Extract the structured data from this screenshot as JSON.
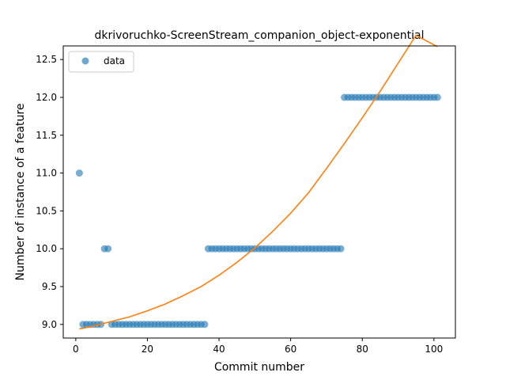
{
  "chart_data": {
    "type": "scatter",
    "title": "dkrivoruchko-ScreenStream_companion_object-exponential",
    "xlabel": "Commit number",
    "ylabel": "Number of instance of a feature",
    "xlim": [
      -3.5,
      106
    ],
    "ylim": [
      8.82,
      12.68
    ],
    "xticks": [
      0,
      20,
      40,
      60,
      80,
      100
    ],
    "yticks": [
      9.0,
      9.5,
      10.0,
      10.5,
      11.0,
      11.5,
      12.0,
      12.5
    ],
    "xtick_labels": [
      "0",
      "20",
      "40",
      "60",
      "80",
      "100"
    ],
    "ytick_labels": [
      "9.0",
      "9.5",
      "10.0",
      "10.5",
      "11.0",
      "11.5",
      "12.0",
      "12.5"
    ],
    "legend": {
      "placement": "top-left",
      "entries": [
        "data"
      ]
    },
    "grid": false,
    "colors": {
      "data": "#1f77b4",
      "fit": "#ff7f0e"
    },
    "series": [
      {
        "name": "data",
        "kind": "scatter",
        "points": [
          [
            1,
            11
          ],
          [
            2,
            9
          ],
          [
            3,
            9
          ],
          [
            4,
            9
          ],
          [
            5,
            9
          ],
          [
            6,
            9
          ],
          [
            7,
            9
          ],
          [
            8,
            10
          ],
          [
            9,
            10
          ],
          [
            10,
            9
          ],
          [
            11,
            9
          ],
          [
            12,
            9
          ],
          [
            13,
            9
          ],
          [
            14,
            9
          ],
          [
            15,
            9
          ],
          [
            16,
            9
          ],
          [
            17,
            9
          ],
          [
            18,
            9
          ],
          [
            19,
            9
          ],
          [
            20,
            9
          ],
          [
            21,
            9
          ],
          [
            22,
            9
          ],
          [
            23,
            9
          ],
          [
            24,
            9
          ],
          [
            25,
            9
          ],
          [
            26,
            9
          ],
          [
            27,
            9
          ],
          [
            28,
            9
          ],
          [
            29,
            9
          ],
          [
            30,
            9
          ],
          [
            31,
            9
          ],
          [
            32,
            9
          ],
          [
            33,
            9
          ],
          [
            34,
            9
          ],
          [
            35,
            9
          ],
          [
            36,
            9
          ],
          [
            37,
            10
          ],
          [
            38,
            10
          ],
          [
            39,
            10
          ],
          [
            40,
            10
          ],
          [
            41,
            10
          ],
          [
            42,
            10
          ],
          [
            43,
            10
          ],
          [
            44,
            10
          ],
          [
            45,
            10
          ],
          [
            46,
            10
          ],
          [
            47,
            10
          ],
          [
            48,
            10
          ],
          [
            49,
            10
          ],
          [
            50,
            10
          ],
          [
            51,
            10
          ],
          [
            52,
            10
          ],
          [
            53,
            10
          ],
          [
            54,
            10
          ],
          [
            55,
            10
          ],
          [
            56,
            10
          ],
          [
            57,
            10
          ],
          [
            58,
            10
          ],
          [
            59,
            10
          ],
          [
            60,
            10
          ],
          [
            61,
            10
          ],
          [
            62,
            10
          ],
          [
            63,
            10
          ],
          [
            64,
            10
          ],
          [
            65,
            10
          ],
          [
            66,
            10
          ],
          [
            67,
            10
          ],
          [
            68,
            10
          ],
          [
            69,
            10
          ],
          [
            70,
            10
          ],
          [
            71,
            10
          ],
          [
            72,
            10
          ],
          [
            73,
            10
          ],
          [
            74,
            10
          ],
          [
            75,
            12
          ],
          [
            76,
            12
          ],
          [
            77,
            12
          ],
          [
            78,
            12
          ],
          [
            79,
            12
          ],
          [
            80,
            12
          ],
          [
            81,
            12
          ],
          [
            82,
            12
          ],
          [
            83,
            12
          ],
          [
            84,
            12
          ],
          [
            85,
            12
          ],
          [
            86,
            12
          ],
          [
            87,
            12
          ],
          [
            88,
            12
          ],
          [
            89,
            12
          ],
          [
            90,
            12
          ],
          [
            91,
            12
          ],
          [
            92,
            12
          ],
          [
            93,
            12
          ],
          [
            94,
            12
          ],
          [
            95,
            12
          ],
          [
            96,
            12
          ],
          [
            97,
            12
          ],
          [
            98,
            12
          ],
          [
            99,
            12
          ],
          [
            100,
            12
          ],
          [
            101,
            12
          ]
        ]
      },
      {
        "kind": "line",
        "points": [
          [
            1,
            8.94
          ],
          [
            5,
            8.98
          ],
          [
            10,
            9.04
          ],
          [
            15,
            9.1
          ],
          [
            20,
            9.18
          ],
          [
            25,
            9.27
          ],
          [
            30,
            9.38
          ],
          [
            35,
            9.5
          ],
          [
            40,
            9.65
          ],
          [
            45,
            9.82
          ],
          [
            50,
            10.01
          ],
          [
            55,
            10.23
          ],
          [
            60,
            10.47
          ],
          [
            65,
            10.74
          ],
          [
            70,
            11.06
          ],
          [
            75,
            11.39
          ],
          [
            80,
            11.73
          ],
          [
            85,
            12.08
          ],
          [
            90,
            12.45
          ],
          [
            95,
            12.82
          ],
          [
            101,
            12.67
          ]
        ]
      }
    ]
  }
}
